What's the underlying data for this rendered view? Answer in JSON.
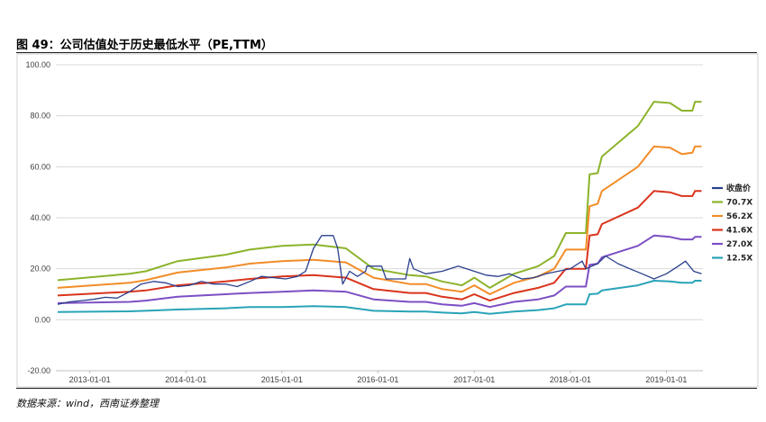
{
  "figure": {
    "title": "图 49：公司估值处于历史最低水平（PE,TTM）",
    "source": "数据来源：wind，西南证券整理"
  },
  "chart_data": {
    "type": "line",
    "title": "",
    "xlabel": "",
    "ylabel": "",
    "x_range": [
      "2012-08-25",
      "2019-05-20"
    ],
    "xticks": [
      "2013-01-01",
      "2014-01-01",
      "2015-01-01",
      "2016-01-01",
      "2017-01-01",
      "2018-01-01",
      "2019-01-01"
    ],
    "ylim": [
      -20,
      100
    ],
    "yticks": [
      "-20.00",
      "0.00",
      "20.00",
      "40.00",
      "60.00",
      "80.00",
      "100.00"
    ],
    "grid": "horizontal",
    "legend_position": "right",
    "series": [
      {
        "name": "收盘价",
        "color": "#2b3f8c",
        "points": [
          [
            "2012-09-01",
            6.0
          ],
          [
            "2012-10-15",
            7.0
          ],
          [
            "2012-12-01",
            7.5
          ],
          [
            "2013-01-15",
            8.0
          ],
          [
            "2013-03-01",
            8.8
          ],
          [
            "2013-04-15",
            8.5
          ],
          [
            "2013-06-01",
            11.0
          ],
          [
            "2013-07-15",
            14.0
          ],
          [
            "2013-09-01",
            15.0
          ],
          [
            "2013-10-15",
            14.5
          ],
          [
            "2013-12-01",
            13.0
          ],
          [
            "2014-01-15",
            13.5
          ],
          [
            "2014-03-01",
            15.0
          ],
          [
            "2014-04-15",
            14.0
          ],
          [
            "2014-06-01",
            14.0
          ],
          [
            "2014-07-15",
            13.0
          ],
          [
            "2014-09-01",
            15.0
          ],
          [
            "2014-10-15",
            17.0
          ],
          [
            "2014-12-01",
            16.5
          ],
          [
            "2015-01-15",
            16.0
          ],
          [
            "2015-03-01",
            17.0
          ],
          [
            "2015-04-01",
            19.0
          ],
          [
            "2015-05-01",
            28.0
          ],
          [
            "2015-06-01",
            33.0
          ],
          [
            "2015-07-15",
            33.0
          ],
          [
            "2015-08-01",
            28.0
          ],
          [
            "2015-08-20",
            14.0
          ],
          [
            "2015-09-15",
            19.0
          ],
          [
            "2015-10-15",
            17.0
          ],
          [
            "2015-11-15",
            19.0
          ],
          [
            "2015-11-20",
            21.0
          ],
          [
            "2016-01-15",
            21.0
          ],
          [
            "2016-02-01",
            16.0
          ],
          [
            "2016-04-15",
            16.0
          ],
          [
            "2016-05-01",
            24.0
          ],
          [
            "2016-05-15",
            20.0
          ],
          [
            "2016-07-01",
            18.0
          ],
          [
            "2016-09-01",
            19.0
          ],
          [
            "2016-11-01",
            21.0
          ],
          [
            "2017-01-01",
            19.0
          ],
          [
            "2017-02-15",
            17.5
          ],
          [
            "2017-04-01",
            17.0
          ],
          [
            "2017-05-15",
            18.0
          ],
          [
            "2017-07-01",
            16.0
          ],
          [
            "2017-08-15",
            16.5
          ],
          [
            "2017-10-01",
            18.0
          ],
          [
            "2017-11-15",
            19.0
          ],
          [
            "2018-01-01",
            20.0
          ],
          [
            "2018-02-15",
            23.0
          ],
          [
            "2018-03-01",
            20.0
          ],
          [
            "2018-04-15",
            22.0
          ],
          [
            "2018-05-15",
            25.0
          ],
          [
            "2018-07-01",
            22.0
          ],
          [
            "2018-08-15",
            20.0
          ],
          [
            "2018-10-01",
            18.0
          ],
          [
            "2018-11-15",
            16.0
          ],
          [
            "2019-01-01",
            18.0
          ],
          [
            "2019-02-15",
            21.0
          ],
          [
            "2019-03-15",
            23.0
          ],
          [
            "2019-04-15",
            19.0
          ],
          [
            "2019-05-15",
            18.0
          ]
        ]
      },
      {
        "name": "70.7X",
        "color": "#8cb32b",
        "points": [
          [
            "2012-09-01",
            15.5
          ],
          [
            "2013-06-01",
            18.0
          ],
          [
            "2013-08-01",
            19.0
          ],
          [
            "2013-12-01",
            23.0
          ],
          [
            "2014-06-01",
            25.5
          ],
          [
            "2014-09-01",
            27.5
          ],
          [
            "2015-01-01",
            29.0
          ],
          [
            "2015-05-01",
            29.5
          ],
          [
            "2015-09-01",
            28.0
          ],
          [
            "2015-12-15",
            20.0
          ],
          [
            "2016-05-01",
            17.5
          ],
          [
            "2016-07-01",
            17.0
          ],
          [
            "2016-09-01",
            15.0
          ],
          [
            "2016-11-15",
            13.5
          ],
          [
            "2017-01-01",
            16.5
          ],
          [
            "2017-03-01",
            12.5
          ],
          [
            "2017-06-01",
            18.0
          ],
          [
            "2017-09-01",
            21.0
          ],
          [
            "2017-11-01",
            25.0
          ],
          [
            "2017-12-15",
            34.0
          ],
          [
            "2018-03-01",
            34.0
          ],
          [
            "2018-03-15",
            57.0
          ],
          [
            "2018-04-15",
            57.5
          ],
          [
            "2018-05-01",
            64.0
          ],
          [
            "2018-09-15",
            76.0
          ],
          [
            "2018-11-15",
            85.5
          ],
          [
            "2019-01-15",
            85.0
          ],
          [
            "2019-03-01",
            82.0
          ],
          [
            "2019-04-10",
            82.0
          ],
          [
            "2019-04-20",
            85.5
          ],
          [
            "2019-05-15",
            85.5
          ]
        ]
      },
      {
        "name": "56.2X",
        "color": "#f28c28",
        "points": [
          [
            "2012-09-01",
            12.5
          ],
          [
            "2013-06-01",
            14.5
          ],
          [
            "2013-08-01",
            15.5
          ],
          [
            "2013-12-01",
            18.5
          ],
          [
            "2014-06-01",
            20.5
          ],
          [
            "2014-09-01",
            22.0
          ],
          [
            "2015-01-01",
            23.0
          ],
          [
            "2015-05-01",
            23.5
          ],
          [
            "2015-09-01",
            22.5
          ],
          [
            "2015-12-15",
            16.5
          ],
          [
            "2016-05-01",
            14.0
          ],
          [
            "2016-07-01",
            14.0
          ],
          [
            "2016-09-01",
            12.0
          ],
          [
            "2016-11-15",
            11.0
          ],
          [
            "2017-01-01",
            13.5
          ],
          [
            "2017-03-01",
            10.0
          ],
          [
            "2017-06-01",
            14.5
          ],
          [
            "2017-09-01",
            17.0
          ],
          [
            "2017-11-01",
            20.0
          ],
          [
            "2017-12-15",
            27.5
          ],
          [
            "2018-03-01",
            27.5
          ],
          [
            "2018-03-15",
            44.5
          ],
          [
            "2018-04-15",
            45.5
          ],
          [
            "2018-05-01",
            50.5
          ],
          [
            "2018-09-15",
            60.0
          ],
          [
            "2018-11-15",
            68.0
          ],
          [
            "2019-01-15",
            67.5
          ],
          [
            "2019-03-01",
            65.0
          ],
          [
            "2019-04-10",
            65.5
          ],
          [
            "2019-04-20",
            68.0
          ],
          [
            "2019-05-15",
            68.0
          ]
        ]
      },
      {
        "name": "41.6X",
        "color": "#d9341c",
        "points": [
          [
            "2012-09-01",
            9.5
          ],
          [
            "2013-06-01",
            11.0
          ],
          [
            "2013-08-01",
            11.5
          ],
          [
            "2013-12-01",
            13.5
          ],
          [
            "2014-06-01",
            15.0
          ],
          [
            "2014-09-01",
            16.0
          ],
          [
            "2015-01-01",
            17.0
          ],
          [
            "2015-05-01",
            17.5
          ],
          [
            "2015-09-01",
            16.5
          ],
          [
            "2015-12-15",
            12.0
          ],
          [
            "2016-05-01",
            10.5
          ],
          [
            "2016-07-01",
            10.5
          ],
          [
            "2016-09-01",
            9.0
          ],
          [
            "2016-11-15",
            8.0
          ],
          [
            "2017-01-01",
            10.0
          ],
          [
            "2017-03-01",
            7.5
          ],
          [
            "2017-06-01",
            10.5
          ],
          [
            "2017-09-01",
            12.5
          ],
          [
            "2017-11-01",
            14.5
          ],
          [
            "2017-12-15",
            20.0
          ],
          [
            "2018-03-01",
            20.0
          ],
          [
            "2018-03-15",
            33.0
          ],
          [
            "2018-04-15",
            33.5
          ],
          [
            "2018-05-01",
            37.5
          ],
          [
            "2018-09-15",
            44.0
          ],
          [
            "2018-11-15",
            50.5
          ],
          [
            "2019-01-15",
            50.0
          ],
          [
            "2019-03-01",
            48.5
          ],
          [
            "2019-04-10",
            48.5
          ],
          [
            "2019-04-20",
            50.5
          ],
          [
            "2019-05-15",
            50.5
          ]
        ]
      },
      {
        "name": "27.0X",
        "color": "#7c4fc4",
        "points": [
          [
            "2012-09-01",
            6.5
          ],
          [
            "2013-06-01",
            7.0
          ],
          [
            "2013-08-01",
            7.5
          ],
          [
            "2013-12-01",
            9.0
          ],
          [
            "2014-06-01",
            10.0
          ],
          [
            "2014-09-01",
            10.5
          ],
          [
            "2015-01-01",
            11.0
          ],
          [
            "2015-05-01",
            11.5
          ],
          [
            "2015-09-01",
            11.0
          ],
          [
            "2015-12-15",
            8.0
          ],
          [
            "2016-05-01",
            7.0
          ],
          [
            "2016-07-01",
            7.0
          ],
          [
            "2016-09-01",
            6.0
          ],
          [
            "2016-11-15",
            5.5
          ],
          [
            "2017-01-01",
            6.5
          ],
          [
            "2017-03-01",
            5.0
          ],
          [
            "2017-06-01",
            7.0
          ],
          [
            "2017-09-01",
            8.0
          ],
          [
            "2017-11-01",
            9.5
          ],
          [
            "2017-12-15",
            13.0
          ],
          [
            "2018-03-01",
            13.0
          ],
          [
            "2018-03-15",
            21.5
          ],
          [
            "2018-04-15",
            22.0
          ],
          [
            "2018-05-01",
            24.5
          ],
          [
            "2018-09-15",
            29.0
          ],
          [
            "2018-11-15",
            33.0
          ],
          [
            "2019-01-15",
            32.5
          ],
          [
            "2019-03-01",
            31.5
          ],
          [
            "2019-04-10",
            31.5
          ],
          [
            "2019-04-20",
            32.5
          ],
          [
            "2019-05-15",
            32.5
          ]
        ]
      },
      {
        "name": "12.5X",
        "color": "#29a3b8",
        "points": [
          [
            "2012-09-01",
            3.0
          ],
          [
            "2013-06-01",
            3.3
          ],
          [
            "2013-08-01",
            3.5
          ],
          [
            "2013-12-01",
            4.0
          ],
          [
            "2014-06-01",
            4.5
          ],
          [
            "2014-09-01",
            5.0
          ],
          [
            "2015-01-01",
            5.0
          ],
          [
            "2015-05-01",
            5.3
          ],
          [
            "2015-09-01",
            5.0
          ],
          [
            "2015-12-15",
            3.5
          ],
          [
            "2016-05-01",
            3.2
          ],
          [
            "2016-07-01",
            3.2
          ],
          [
            "2016-09-01",
            2.8
          ],
          [
            "2016-11-15",
            2.5
          ],
          [
            "2017-01-01",
            3.0
          ],
          [
            "2017-03-01",
            2.3
          ],
          [
            "2017-06-01",
            3.2
          ],
          [
            "2017-09-01",
            3.8
          ],
          [
            "2017-11-01",
            4.5
          ],
          [
            "2017-12-15",
            6.0
          ],
          [
            "2018-03-01",
            6.0
          ],
          [
            "2018-03-15",
            10.0
          ],
          [
            "2018-04-15",
            10.2
          ],
          [
            "2018-05-01",
            11.5
          ],
          [
            "2018-09-15",
            13.5
          ],
          [
            "2018-11-15",
            15.3
          ],
          [
            "2019-01-15",
            15.0
          ],
          [
            "2019-03-01",
            14.5
          ],
          [
            "2019-04-10",
            14.5
          ],
          [
            "2019-04-20",
            15.3
          ],
          [
            "2019-05-15",
            15.3
          ]
        ]
      }
    ]
  }
}
